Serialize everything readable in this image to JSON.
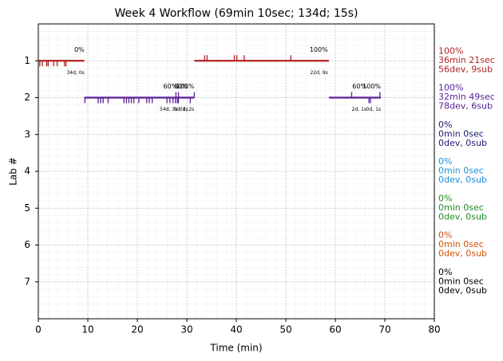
{
  "chart_data": {
    "type": "timeline",
    "title": "Week 4 Workflow (69min 10sec; 134d; 15s)",
    "x_label": "Time (min)",
    "y_label": "Lab #",
    "xlim": [
      0,
      80
    ],
    "xticks": [
      0,
      10,
      20,
      30,
      40,
      50,
      60,
      70,
      80
    ],
    "ylim": [
      8,
      0
    ],
    "yticks": [
      1,
      2,
      3,
      4,
      5,
      6,
      7
    ],
    "grid": true,
    "minor_grid": true,
    "labs": [
      {
        "lab": 1,
        "color": "#b22222",
        "summary": [
          "100%",
          "36min 21sec",
          "56dev, 9sub"
        ],
        "segments": [
          {
            "start": 0,
            "end": 9.3,
            "devs": [
              0.3,
              0.8,
              1.7,
              2.0,
              3.1,
              3.8,
              5.3,
              5.6
            ],
            "subs": [],
            "annotations": [
              {
                "x": 9.3,
                "top": "0%",
                "bottom": "34d, 0s"
              }
            ]
          },
          {
            "start": 31.5,
            "end": 58.7,
            "devs": [],
            "subs": [
              33.6,
              34.1,
              39.6,
              40.1,
              41.6,
              51.0
            ],
            "annotations": [
              {
                "x": 58.5,
                "top": "100%",
                "bottom": "22d, 9s"
              }
            ]
          }
        ]
      },
      {
        "lab": 2,
        "color": "#5a1e96",
        "summary": [
          "100%",
          "32min 49sec",
          "78dev, 6sub"
        ],
        "segments": [
          {
            "start": 9.3,
            "end": 31.5,
            "devs": [
              9.4,
              12.1,
              12.6,
              13.1,
              14.1,
              17.3,
              17.8,
              18.3,
              18.8,
              19.3,
              20.3,
              21.9,
              22.4,
              23.0,
              26.0,
              26.6,
              27.2,
              27.7,
              28.1,
              28.3,
              30.7
            ],
            "subs": [
              27.8,
              28.3,
              31.5
            ],
            "annotations": [
              {
                "x": 28.1,
                "top": "60%",
                "bottom": "54d, 3s"
              },
              {
                "x": 30.3,
                "top": "80%",
                "bottom": "0d, 1s"
              },
              {
                "x": 31.5,
                "top": "100%",
                "bottom": "0d, 2s"
              }
            ]
          },
          {
            "start": 58.7,
            "end": 69.2,
            "devs": [
              66.8,
              67.1
            ],
            "subs": [
              63.3,
              69.0
            ],
            "annotations": [
              {
                "x": 66.3,
                "top": "60%",
                "bottom": "2d, 1s"
              },
              {
                "x": 69.2,
                "top": "100%",
                "bottom": "0d, 1s"
              }
            ]
          }
        ]
      },
      {
        "lab": 3,
        "color": "#191970",
        "summary": [
          "0%",
          "0min 0sec",
          "0dev, 0sub"
        ],
        "segments": []
      },
      {
        "lab": 4,
        "color": "#1e90d6",
        "summary": [
          "0%",
          "0min 0sec",
          "0dev, 0sub"
        ],
        "segments": []
      },
      {
        "lab": 5,
        "color": "#228b22",
        "summary": [
          "0%",
          "0min 0sec",
          "0dev, 0sub"
        ],
        "segments": []
      },
      {
        "lab": 6,
        "color": "#d2500a",
        "summary": [
          "0%",
          "0min 0sec",
          "0dev, 0sub"
        ],
        "segments": []
      },
      {
        "lab": 7,
        "color": "#000000",
        "summary": [
          "0%",
          "0min 0sec",
          "0dev, 0sub"
        ],
        "segments": []
      }
    ]
  }
}
